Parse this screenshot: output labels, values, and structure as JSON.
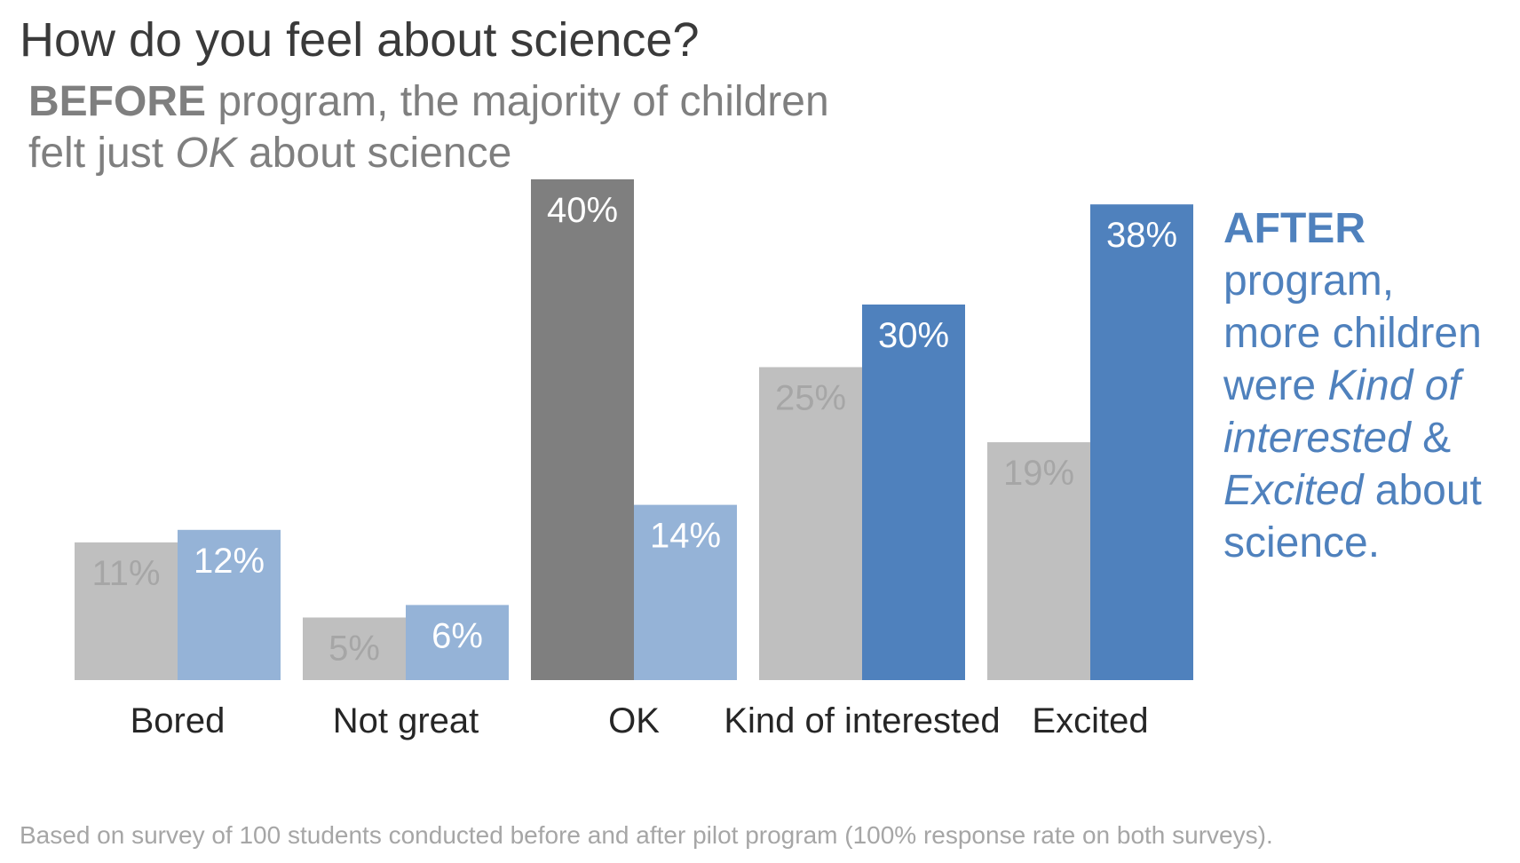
{
  "title": "How do you feel about science?",
  "before_note": {
    "strong": "BEFORE",
    "line1_rest": " program, the majority of children",
    "line2_pre": "felt just ",
    "line2_em": "OK",
    "line2_post": " about science"
  },
  "after_note": {
    "strong": "AFTER",
    "line2": "program,",
    "line3": "more children",
    "line4_pre": "were ",
    "line4_em": "Kind of",
    "line5_em": "interested",
    "line5_post": " &",
    "line6_em": "Excited",
    "line6_post": " about",
    "line7": "science."
  },
  "footnote": "Based on survey of 100 students conducted before and after pilot program (100% response rate on both surveys).",
  "chart_data": {
    "type": "bar",
    "categories": [
      "Bored",
      "Not great",
      "OK",
      "Kind of interested",
      "Excited"
    ],
    "series": [
      {
        "values": [
          11,
          5,
          40,
          25,
          19
        ],
        "labels": [
          "11%",
          "5%",
          "40%",
          "25%",
          "19%"
        ]
      },
      {
        "values": [
          12,
          6,
          14,
          30,
          38
        ],
        "labels": [
          "12%",
          "6%",
          "14%",
          "30%",
          "38%"
        ]
      }
    ],
    "ylim": [
      0,
      40
    ],
    "colors": {
      "before": "#bfbfbf",
      "before_highlight": "#7f7f7f",
      "after": "#95b3d7",
      "after_highlight": "#4f81bd",
      "before_label": "#a6a6a6",
      "after_label": "#ffffff"
    }
  }
}
